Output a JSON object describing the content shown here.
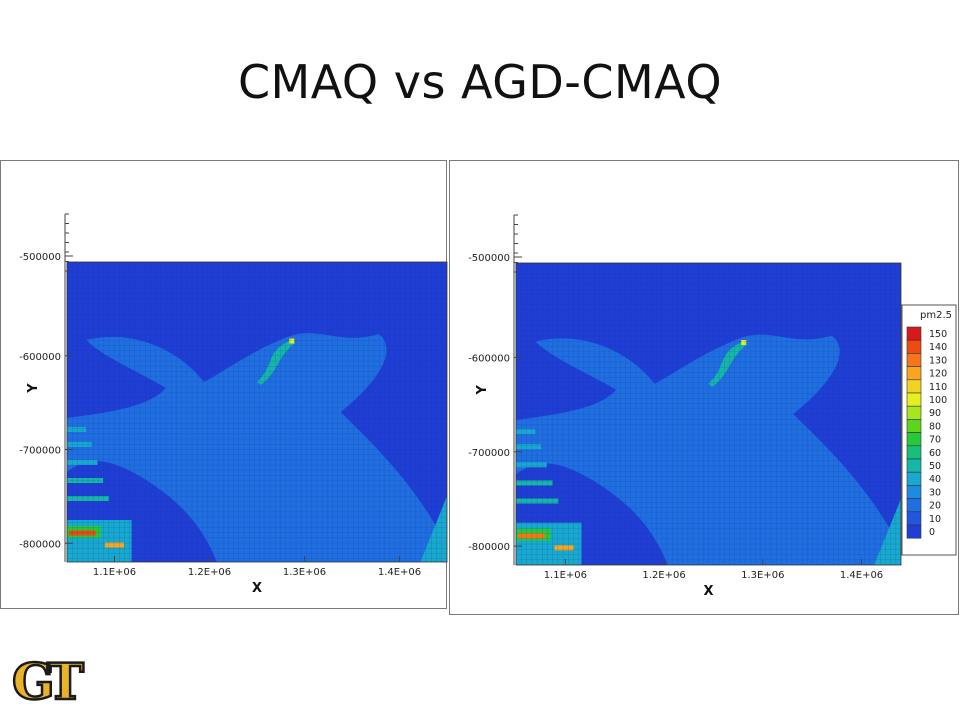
{
  "slide": {
    "title": "CMAQ vs AGD-CMAQ"
  },
  "chart_data": [
    {
      "type": "heatmap",
      "title": "",
      "xlabel": "X",
      "ylabel": "Y",
      "x_ticks": [
        "1.1E+06",
        "1.2E+06",
        "1.3E+06",
        "1.4E+06"
      ],
      "y_ticks": [
        "-500000",
        "-600000",
        "-700000",
        "-800000"
      ],
      "xlim": [
        1050000,
        1450000
      ],
      "ylim": [
        -820000,
        -500000
      ],
      "values_by_region": {
        "background": 8,
        "plume_band": 28,
        "ridge_highlight": 55,
        "southwest_hotspot": 140
      }
    },
    {
      "type": "heatmap",
      "title": "",
      "xlabel": "X",
      "ylabel": "Y",
      "x_ticks": [
        "1.1E+06",
        "1.2E+06",
        "1.3E+06",
        "1.4E+06"
      ],
      "y_ticks": [
        "-500000",
        "-600000",
        "-700000",
        "-800000"
      ],
      "xlim": [
        1050000,
        1440000
      ],
      "ylim": [
        -820000,
        -500000
      ],
      "values_by_region": {
        "background": 8,
        "plume_band": 26,
        "ridge_highlight": 50,
        "southwest_hotspot": 130
      },
      "legend": {
        "title": "pm2.5",
        "levels": [
          150,
          140,
          130,
          120,
          110,
          100,
          90,
          80,
          70,
          60,
          50,
          40,
          30,
          20,
          10,
          0
        ],
        "colors": [
          "#d7191c",
          "#ee4a12",
          "#f5761a",
          "#f9a520",
          "#f3d321",
          "#e6ef1f",
          "#a8e61c",
          "#5fd41c",
          "#27c83a",
          "#18bf78",
          "#14b7a8",
          "#17a9cf",
          "#1d8ce0",
          "#1f6fe2",
          "#2356e0",
          "#1f3ed6"
        ],
        "placement": "right"
      }
    }
  ],
  "logo": {
    "text": "GT",
    "fill": "#eab228",
    "outline": "#1a1a1a"
  },
  "colors": {
    "plot_bg": "#1e55d6",
    "plume": "#2f78d8",
    "grid": "#1a2f7a"
  }
}
